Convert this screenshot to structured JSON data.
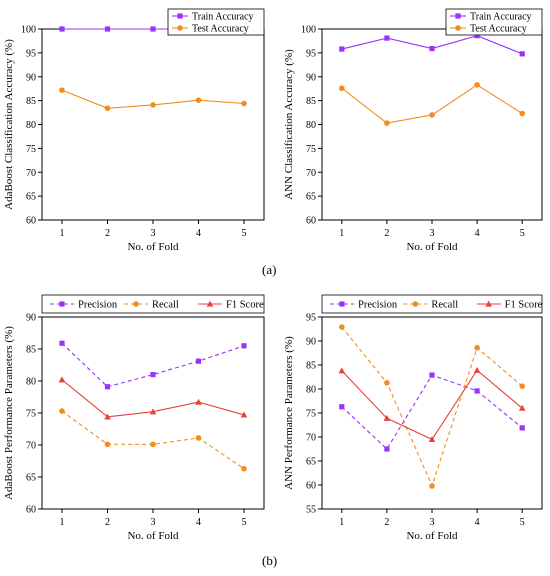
{
  "panel_labels": [
    "(a)",
    "(b)"
  ],
  "colors": {
    "purple": "#9b30ff",
    "orange": "#f28c1e",
    "red": "#e8403c",
    "axis": "#000000"
  },
  "chart_data": [
    {
      "type": "line",
      "xlabel": "No. of Fold",
      "ylabel": "AdaBoost Classification Accuracy (%)",
      "x": [
        1,
        2,
        3,
        4,
        5
      ],
      "ylim": [
        60,
        100
      ],
      "yticks": [
        60,
        65,
        70,
        75,
        80,
        85,
        90,
        95,
        100
      ],
      "legend_position": "top-right",
      "series": [
        {
          "name": "Train Accuracy",
          "values": [
            100,
            100,
            100,
            100,
            100
          ],
          "color": "#9b30ff",
          "marker": "square",
          "dash": false
        },
        {
          "name": "Test Accuracy",
          "values": [
            87.2,
            83.4,
            84.1,
            85.1,
            84.4
          ],
          "color": "#f28c1e",
          "marker": "circle",
          "dash": false
        }
      ]
    },
    {
      "type": "line",
      "xlabel": "No. of Fold",
      "ylabel": "ANN Classification Accuracy (%)",
      "x": [
        1,
        2,
        3,
        4,
        5
      ],
      "ylim": [
        60,
        100
      ],
      "yticks": [
        60,
        65,
        70,
        75,
        80,
        85,
        90,
        95,
        100
      ],
      "legend_position": "top-right",
      "series": [
        {
          "name": "Train Accuracy",
          "values": [
            95.8,
            98.1,
            95.9,
            98.6,
            94.8
          ],
          "color": "#9b30ff",
          "marker": "square",
          "dash": false
        },
        {
          "name": "Test Accuracy",
          "values": [
            87.6,
            80.3,
            82.0,
            88.3,
            82.3
          ],
          "color": "#f28c1e",
          "marker": "circle",
          "dash": false
        }
      ]
    },
    {
      "type": "line",
      "xlabel": "No. of Fold",
      "ylabel": "AdaBoost Performance Parameters (%)",
      "x": [
        1,
        2,
        3,
        4,
        5
      ],
      "ylim": [
        60,
        90
      ],
      "yticks": [
        60,
        65,
        70,
        75,
        80,
        85,
        90
      ],
      "legend_position": "top",
      "series": [
        {
          "name": "Precision",
          "values": [
            85.9,
            79.1,
            81.0,
            83.1,
            85.5
          ],
          "color": "#9b30ff",
          "marker": "square",
          "dash": true
        },
        {
          "name": "Recall",
          "values": [
            75.3,
            70.1,
            70.1,
            71.1,
            66.3
          ],
          "color": "#f28c1e",
          "marker": "circle",
          "dash": true
        },
        {
          "name": "F1 Score",
          "values": [
            80.2,
            74.4,
            75.2,
            76.7,
            74.7
          ],
          "color": "#e8403c",
          "marker": "triangle",
          "dash": false
        }
      ]
    },
    {
      "type": "line",
      "xlabel": "No. of Fold",
      "ylabel": "ANN Performance Parameters (%)",
      "x": [
        1,
        2,
        3,
        4,
        5
      ],
      "ylim": [
        55,
        95
      ],
      "yticks": [
        55,
        60,
        65,
        70,
        75,
        80,
        85,
        90,
        95
      ],
      "legend_position": "top",
      "series": [
        {
          "name": "Precision",
          "values": [
            76.3,
            67.5,
            82.9,
            79.6,
            71.9
          ],
          "color": "#9b30ff",
          "marker": "square",
          "dash": true
        },
        {
          "name": "Recall",
          "values": [
            92.9,
            81.3,
            59.8,
            88.6,
            80.6
          ],
          "color": "#f28c1e",
          "marker": "circle",
          "dash": true
        },
        {
          "name": "F1 Score",
          "values": [
            83.8,
            73.9,
            69.5,
            83.9,
            76.0
          ],
          "color": "#e8403c",
          "marker": "triangle",
          "dash": false
        }
      ]
    }
  ]
}
